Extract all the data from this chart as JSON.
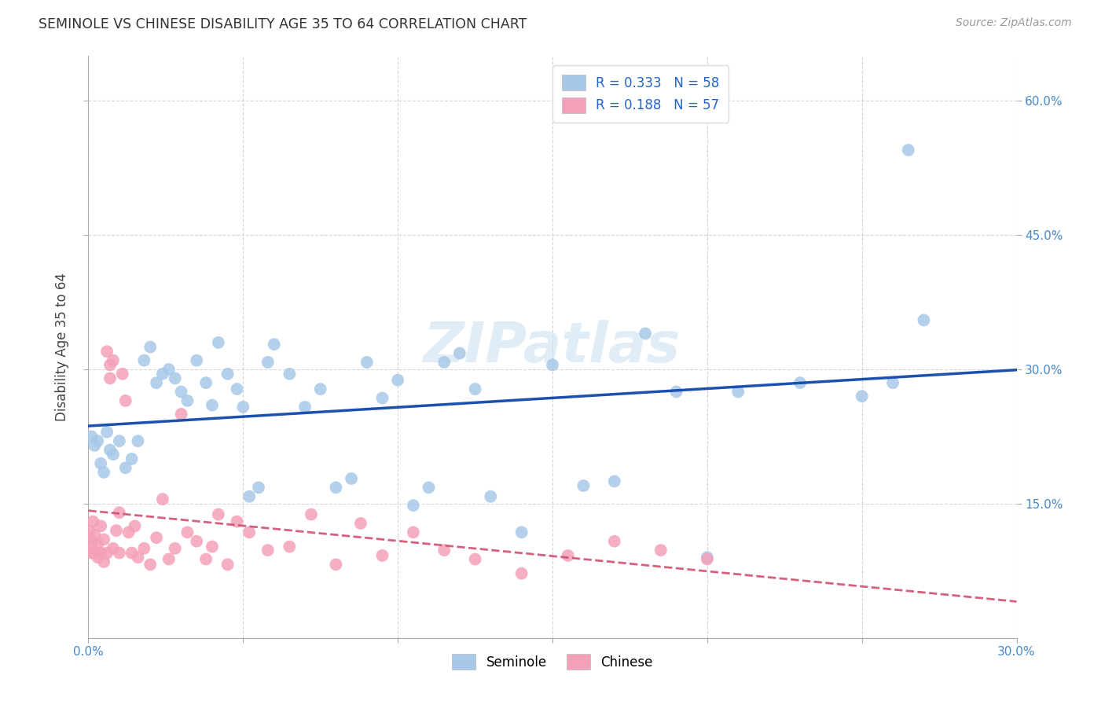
{
  "title": "SEMINOLE VS CHINESE DISABILITY AGE 35 TO 64 CORRELATION CHART",
  "source": "Source: ZipAtlas.com",
  "ylabel": "Disability Age 35 to 64",
  "xmin": 0.0,
  "xmax": 0.3,
  "ymin": 0.0,
  "ymax": 0.65,
  "xtick_vals": [
    0.0,
    0.05,
    0.1,
    0.15,
    0.2,
    0.25,
    0.3
  ],
  "xtick_show_labels": [
    0.0,
    0.3
  ],
  "ytick_vals": [
    0.15,
    0.3,
    0.45,
    0.6
  ],
  "seminole_R": 0.333,
  "seminole_N": 58,
  "chinese_R": 0.188,
  "chinese_N": 57,
  "seminole_color": "#a8c8e8",
  "chinese_color": "#f4a0b8",
  "seminole_line_color": "#1a50b0",
  "chinese_line_color": "#d05070",
  "watermark": "ZIPatlas",
  "seminole_x": [
    0.001,
    0.002,
    0.003,
    0.004,
    0.005,
    0.006,
    0.007,
    0.008,
    0.01,
    0.012,
    0.014,
    0.016,
    0.018,
    0.02,
    0.022,
    0.024,
    0.026,
    0.028,
    0.03,
    0.032,
    0.035,
    0.038,
    0.04,
    0.042,
    0.045,
    0.048,
    0.05,
    0.052,
    0.055,
    0.058,
    0.06,
    0.065,
    0.07,
    0.075,
    0.08,
    0.085,
    0.09,
    0.095,
    0.1,
    0.105,
    0.11,
    0.115,
    0.12,
    0.125,
    0.13,
    0.14,
    0.15,
    0.16,
    0.17,
    0.18,
    0.19,
    0.2,
    0.21,
    0.23,
    0.25,
    0.26,
    0.265,
    0.27
  ],
  "seminole_y": [
    0.225,
    0.215,
    0.22,
    0.195,
    0.185,
    0.23,
    0.21,
    0.205,
    0.22,
    0.19,
    0.2,
    0.22,
    0.31,
    0.325,
    0.285,
    0.295,
    0.3,
    0.29,
    0.275,
    0.265,
    0.31,
    0.285,
    0.26,
    0.33,
    0.295,
    0.278,
    0.258,
    0.158,
    0.168,
    0.308,
    0.328,
    0.295,
    0.258,
    0.278,
    0.168,
    0.178,
    0.308,
    0.268,
    0.288,
    0.148,
    0.168,
    0.308,
    0.318,
    0.278,
    0.158,
    0.118,
    0.305,
    0.17,
    0.175,
    0.34,
    0.275,
    0.09,
    0.275,
    0.285,
    0.27,
    0.285,
    0.545,
    0.355
  ],
  "chinese_x": [
    0.0003,
    0.0005,
    0.001,
    0.001,
    0.0015,
    0.002,
    0.002,
    0.003,
    0.003,
    0.004,
    0.004,
    0.005,
    0.005,
    0.006,
    0.006,
    0.007,
    0.007,
    0.008,
    0.008,
    0.009,
    0.01,
    0.01,
    0.011,
    0.012,
    0.013,
    0.014,
    0.015,
    0.016,
    0.018,
    0.02,
    0.022,
    0.024,
    0.026,
    0.028,
    0.03,
    0.032,
    0.035,
    0.038,
    0.04,
    0.042,
    0.045,
    0.048,
    0.052,
    0.058,
    0.065,
    0.072,
    0.08,
    0.088,
    0.095,
    0.105,
    0.115,
    0.125,
    0.14,
    0.155,
    0.17,
    0.185,
    0.2
  ],
  "chinese_y": [
    0.12,
    0.11,
    0.105,
    0.095,
    0.13,
    0.095,
    0.115,
    0.105,
    0.09,
    0.125,
    0.095,
    0.11,
    0.085,
    0.095,
    0.32,
    0.305,
    0.29,
    0.31,
    0.1,
    0.12,
    0.095,
    0.14,
    0.295,
    0.265,
    0.118,
    0.095,
    0.125,
    0.09,
    0.1,
    0.082,
    0.112,
    0.155,
    0.088,
    0.1,
    0.25,
    0.118,
    0.108,
    0.088,
    0.102,
    0.138,
    0.082,
    0.13,
    0.118,
    0.098,
    0.102,
    0.138,
    0.082,
    0.128,
    0.092,
    0.118,
    0.098,
    0.088,
    0.072,
    0.092,
    0.108,
    0.098,
    0.088
  ]
}
